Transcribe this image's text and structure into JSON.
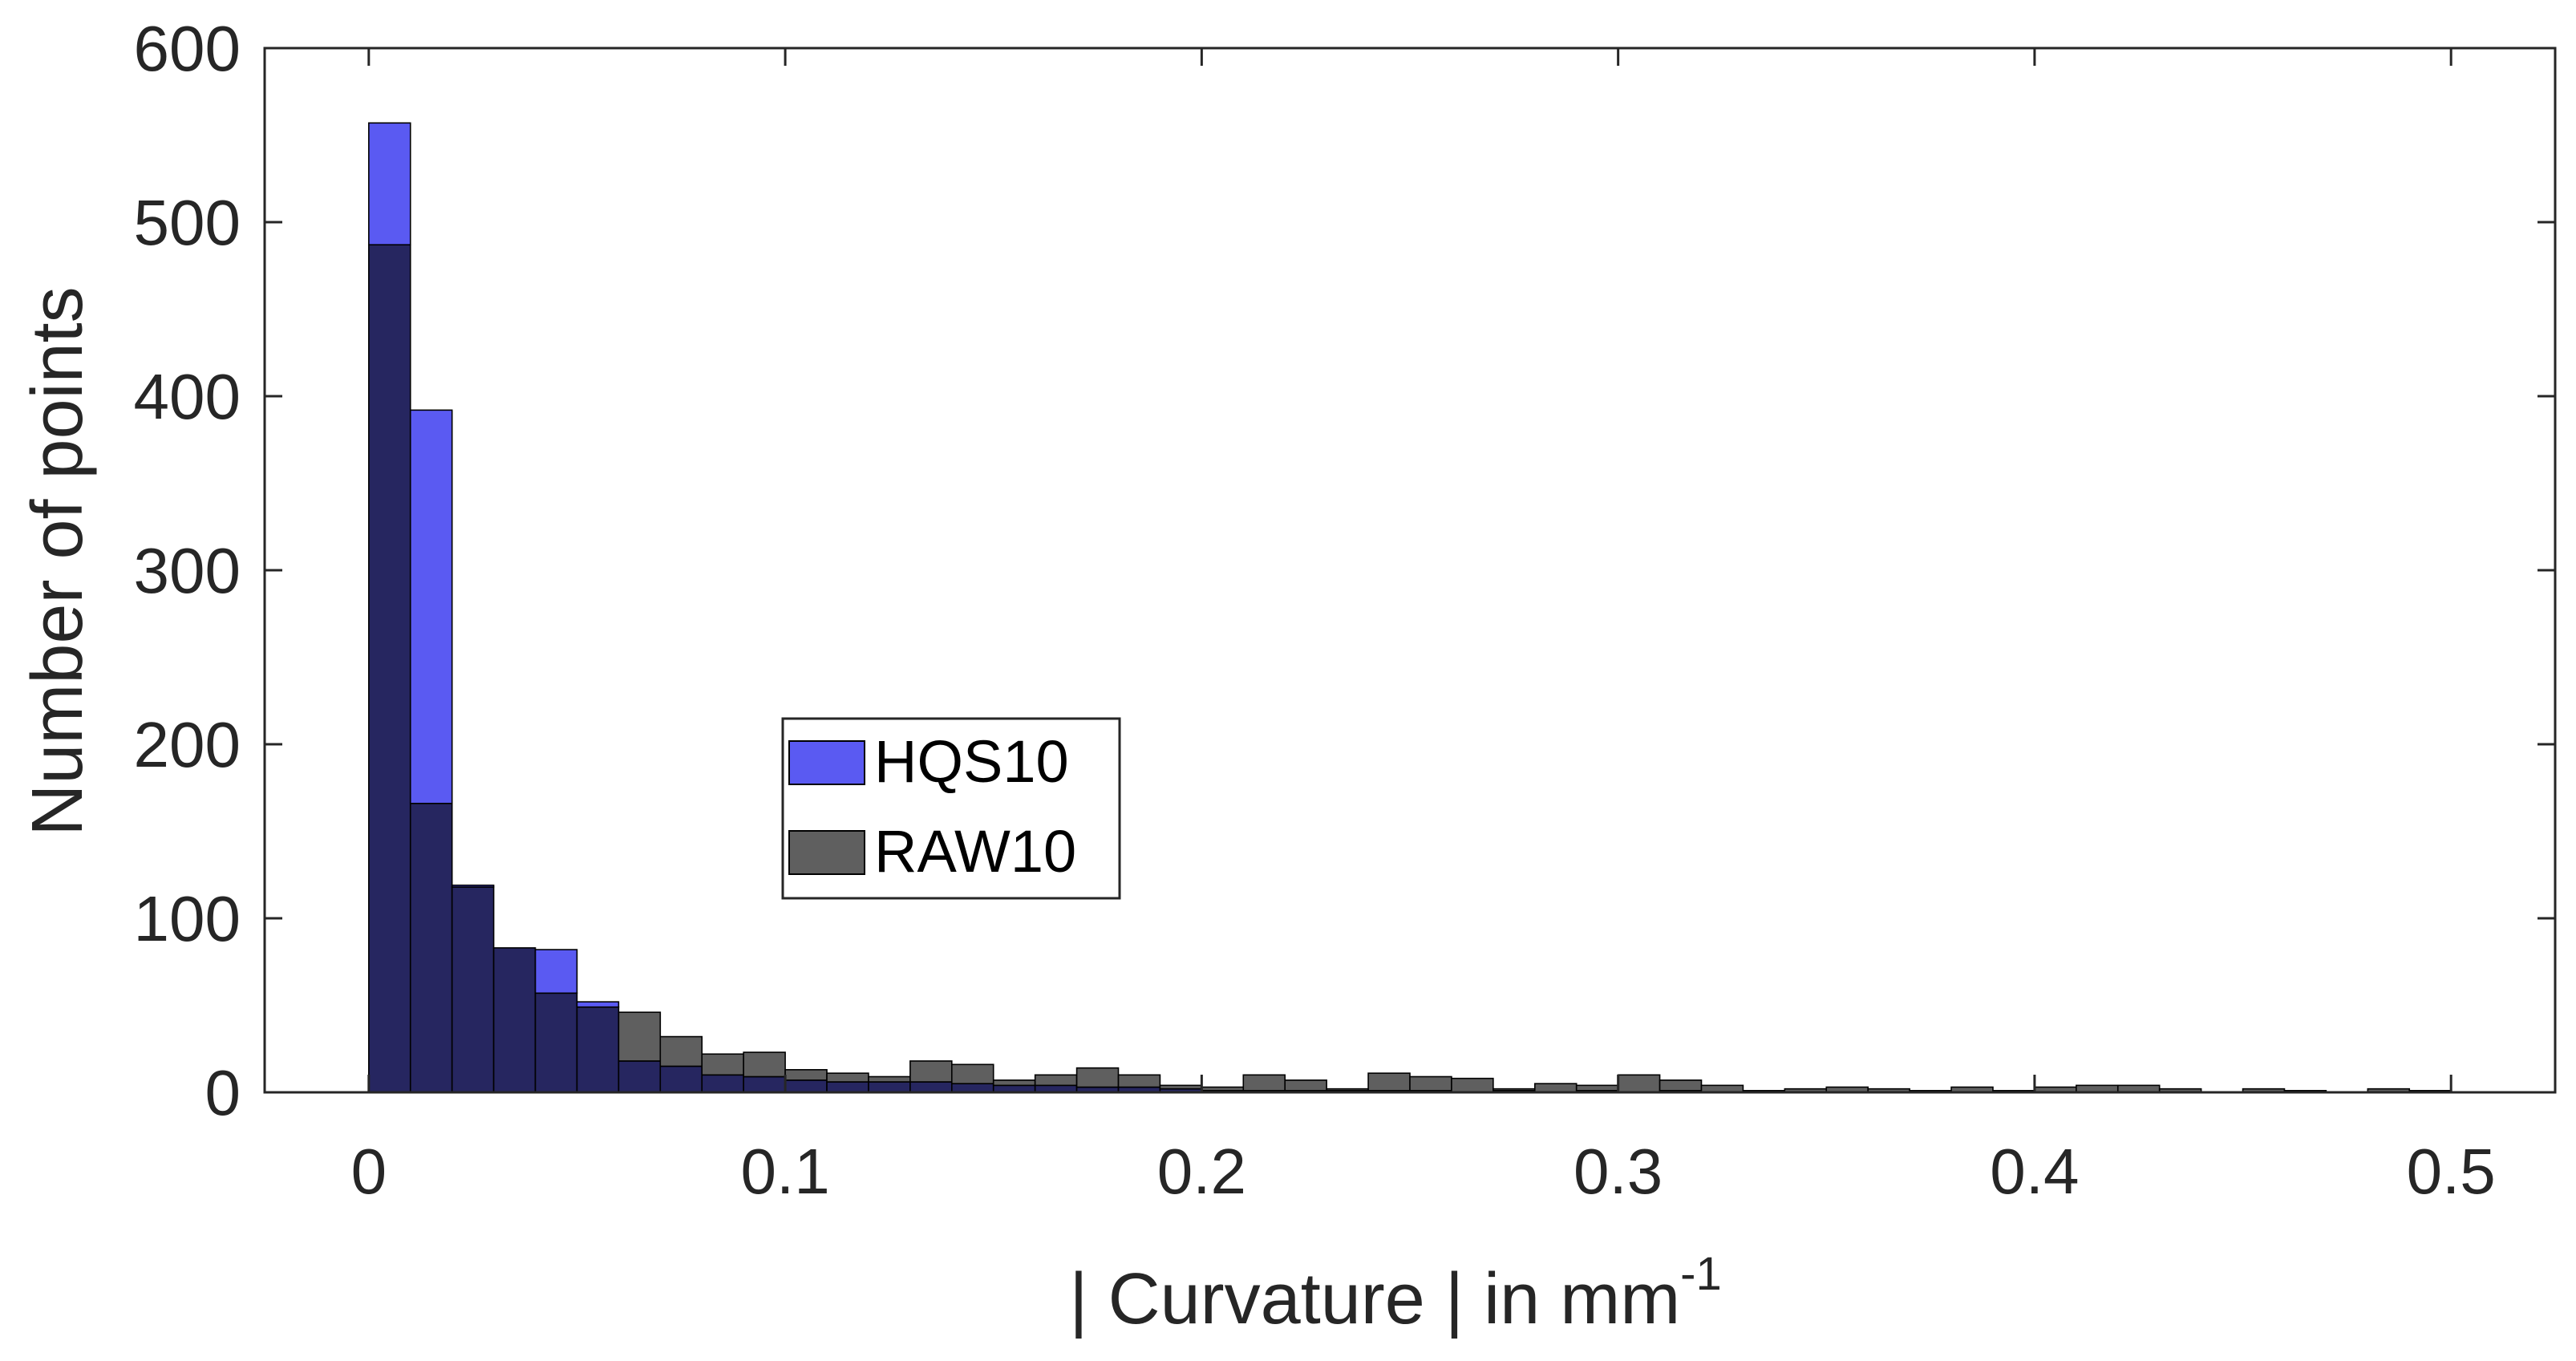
{
  "chart_data": {
    "type": "bar",
    "subtype": "overlaid-histogram",
    "title": "",
    "xlabel": "| Curvature | in mm",
    "xlabel_superscript": "-1",
    "ylabel": "Number of points",
    "xlim": [
      -0.025,
      0.525
    ],
    "ylim": [
      0,
      600
    ],
    "xticks": [
      0,
      0.1,
      0.2,
      0.3,
      0.4,
      0.5
    ],
    "xtick_labels": [
      "0",
      "0.1",
      "0.2",
      "0.3",
      "0.4",
      "0.5"
    ],
    "yticks": [
      0,
      100,
      200,
      300,
      400,
      500,
      600
    ],
    "ytick_labels": [
      "0",
      "100",
      "200",
      "300",
      "400",
      "500",
      "600"
    ],
    "grid": false,
    "legend_position": "center-left",
    "bin_width": 0.01,
    "bin_edges_start": 0,
    "series": [
      {
        "name": "HQS10",
        "color": "#5a5af2",
        "values": [
          557,
          392,
          119,
          83,
          82,
          52,
          18,
          15,
          10,
          9,
          7,
          6,
          6,
          6,
          5,
          4,
          4,
          3,
          3,
          2,
          1,
          1,
          1,
          1,
          1,
          1,
          0,
          1,
          0,
          1,
          0,
          1,
          0,
          0,
          0,
          0,
          0,
          0,
          0,
          0,
          0,
          0,
          0,
          0,
          0,
          0,
          0,
          0,
          0,
          0
        ]
      },
      {
        "name": "RAW10",
        "color": "#5f5f5f",
        "values": [
          487,
          166,
          118,
          83,
          57,
          49,
          46,
          32,
          22,
          23,
          13,
          11,
          9,
          18,
          16,
          7,
          10,
          14,
          10,
          4,
          3,
          10,
          7,
          2,
          11,
          9,
          8,
          2,
          5,
          4,
          10,
          7,
          4,
          1,
          2,
          3,
          2,
          1,
          3,
          1,
          3,
          4,
          4,
          2,
          0,
          2,
          1,
          0,
          2,
          1
        ]
      }
    ],
    "overlap_color": "#262660"
  }
}
